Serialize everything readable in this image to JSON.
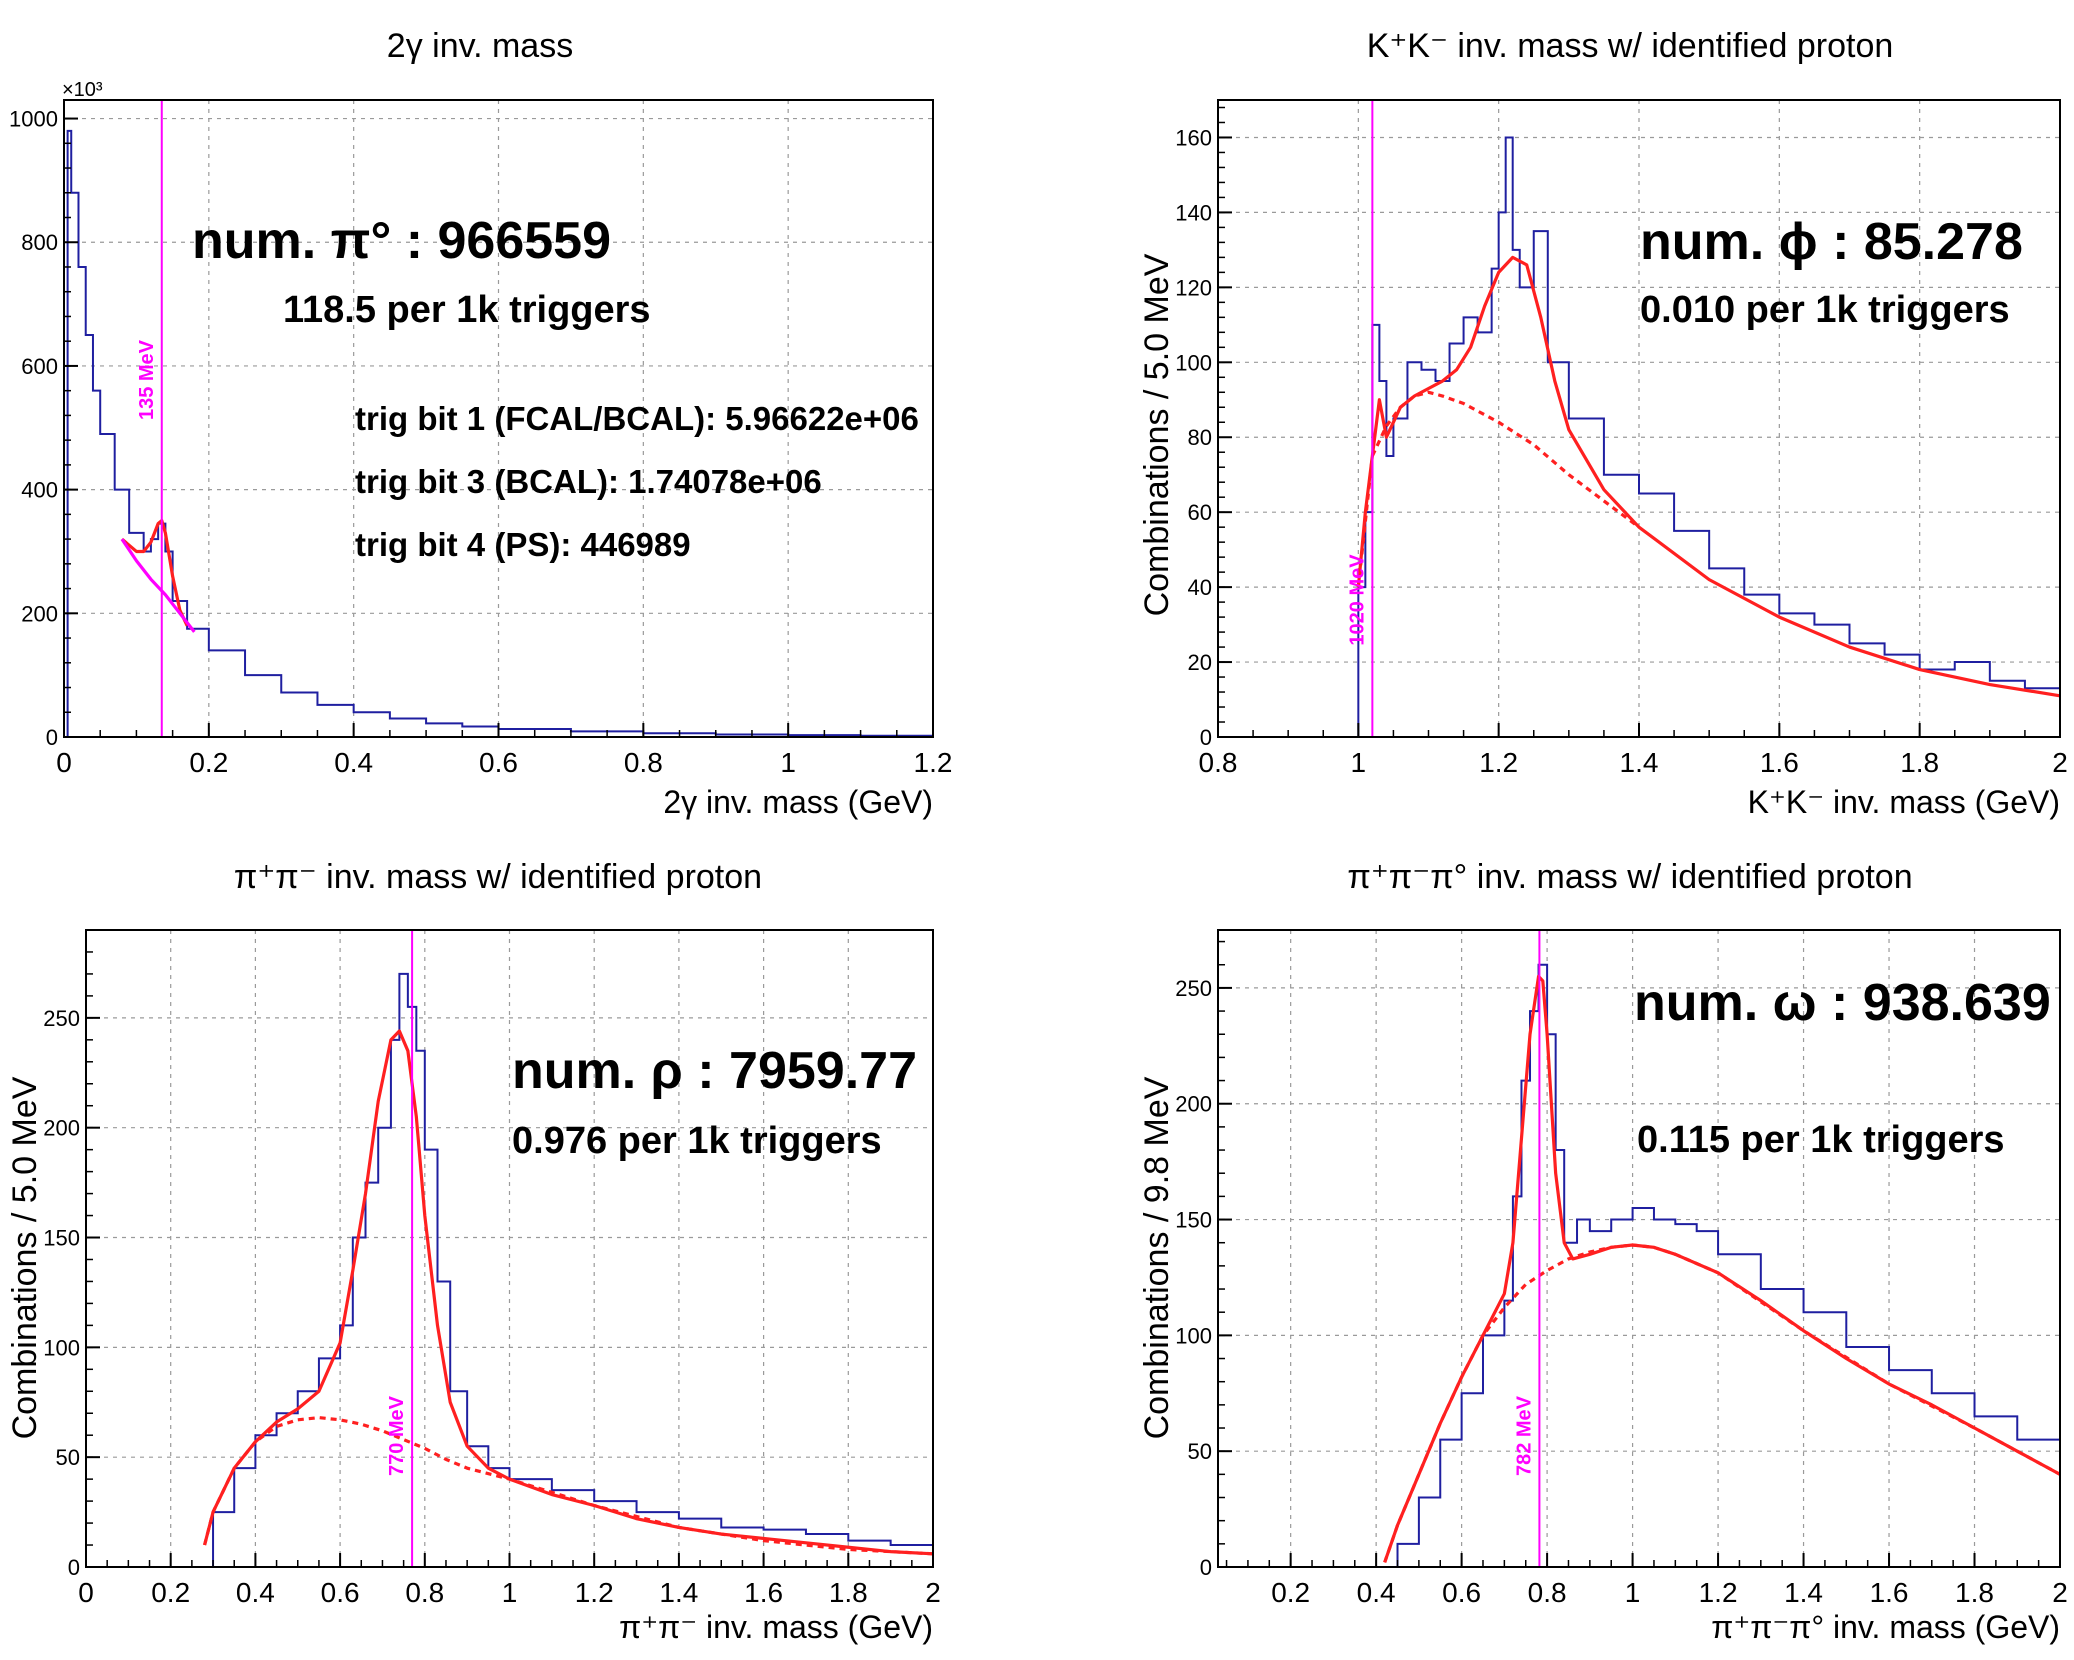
{
  "chart_data": [
    {
      "type": "line",
      "title": "2γ inv. mass",
      "xlabel": "2γ inv. mass (GeV)",
      "ylabel": "",
      "xlim": [
        0,
        1.2
      ],
      "ylim": [
        0,
        1030
      ],
      "y_multiplier_label": "×10³",
      "xticks": [
        0,
        0.2,
        0.4,
        0.6,
        0.8,
        1,
        1.2
      ],
      "xtick_labels": [
        "0",
        "0.2",
        "0.4",
        "0.6",
        "0.8",
        "1",
        "1.2"
      ],
      "yticks": [
        0,
        200,
        400,
        600,
        800,
        1000
      ],
      "ytick_labels": [
        "0",
        "200",
        "400",
        "600",
        "800",
        "1000"
      ],
      "grid": true,
      "marker": {
        "x": 0.135,
        "label": "135 MeV"
      },
      "annotations": {
        "count": "num. π° : 966559",
        "rate": "118.5 per 1k triggers",
        "trig1": "trig bit 1 (FCAL/BCAL): 5.96622e+06",
        "trig3": "trig bit 3 (BCAL): 1.74078e+06",
        "trig4": "trig bit 4 (PS): 446989"
      },
      "series": [
        {
          "role": "histogram",
          "color": "#1f1fa0",
          "x": [
            0.002,
            0.005,
            0.01,
            0.02,
            0.03,
            0.04,
            0.05,
            0.07,
            0.09,
            0.11,
            0.12,
            0.13,
            0.14,
            0.15,
            0.17,
            0.2,
            0.25,
            0.3,
            0.35,
            0.4,
            0.45,
            0.5,
            0.55,
            0.6,
            0.7,
            0.8,
            0.9,
            1.0,
            1.1,
            1.2
          ],
          "y": [
            0,
            980,
            880,
            760,
            650,
            560,
            490,
            400,
            330,
            300,
            320,
            345,
            300,
            220,
            175,
            140,
            100,
            72,
            52,
            40,
            30,
            22,
            17,
            13,
            9,
            6,
            4,
            3,
            2,
            1
          ]
        },
        {
          "role": "total fit",
          "color": "#ff2020",
          "x": [
            0.08,
            0.1,
            0.11,
            0.12,
            0.13,
            0.135,
            0.14,
            0.15,
            0.16,
            0.17
          ],
          "y": [
            320,
            300,
            300,
            315,
            345,
            350,
            330,
            260,
            205,
            180
          ]
        },
        {
          "role": "background fit",
          "color": "#ff00ff",
          "x": [
            0.08,
            0.1,
            0.12,
            0.14,
            0.16,
            0.18
          ],
          "y": [
            320,
            285,
            255,
            230,
            200,
            170
          ]
        }
      ]
    },
    {
      "type": "line",
      "title": "K⁺K⁻ inv. mass w/ identified proton",
      "xlabel": "K⁺K⁻ inv. mass (GeV)",
      "ylabel": "Combinations /   5.0 MeV",
      "xlim": [
        0.8,
        2.0
      ],
      "ylim": [
        0,
        170
      ],
      "xticks": [
        0.8,
        1,
        1.2,
        1.4,
        1.6,
        1.8,
        2
      ],
      "xtick_labels": [
        "0.8",
        "1",
        "1.2",
        "1.4",
        "1.6",
        "1.8",
        "2"
      ],
      "yticks": [
        0,
        20,
        40,
        60,
        80,
        100,
        120,
        140,
        160
      ],
      "ytick_labels": [
        "0",
        "20",
        "40",
        "60",
        "80",
        "100",
        "120",
        "140",
        "160"
      ],
      "grid": true,
      "marker": {
        "x": 1.02,
        "label": "1020 MeV"
      },
      "annotations": {
        "count": "num. ϕ : 85.278",
        "rate": "0.010 per 1k triggers"
      },
      "series": [
        {
          "role": "histogram",
          "color": "#1f1fa0",
          "x": [
            0.99,
            1.0,
            1.01,
            1.02,
            1.03,
            1.04,
            1.05,
            1.07,
            1.09,
            1.11,
            1.13,
            1.15,
            1.17,
            1.19,
            1.2,
            1.21,
            1.22,
            1.23,
            1.25,
            1.27,
            1.3,
            1.35,
            1.4,
            1.45,
            1.5,
            1.55,
            1.6,
            1.65,
            1.7,
            1.75,
            1.8,
            1.85,
            1.9,
            1.95,
            2.0
          ],
          "y": [
            0,
            40,
            60,
            110,
            95,
            75,
            85,
            100,
            98,
            95,
            105,
            112,
            108,
            125,
            140,
            160,
            130,
            120,
            135,
            100,
            85,
            70,
            65,
            55,
            45,
            38,
            33,
            30,
            25,
            22,
            18,
            20,
            15,
            13,
            15
          ]
        },
        {
          "role": "total fit",
          "color": "#ff2020",
          "x": [
            1.0,
            1.01,
            1.02,
            1.03,
            1.04,
            1.06,
            1.08,
            1.1,
            1.12,
            1.14,
            1.16,
            1.18,
            1.2,
            1.22,
            1.24,
            1.26,
            1.28,
            1.3,
            1.35,
            1.4,
            1.5,
            1.6,
            1.7,
            1.8,
            1.9,
            2.0
          ],
          "y": [
            40,
            60,
            75,
            90,
            80,
            88,
            91,
            93,
            95,
            98,
            104,
            115,
            124,
            128,
            126,
            112,
            95,
            82,
            66,
            56,
            42,
            32,
            24,
            18,
            14,
            11
          ]
        },
        {
          "role": "background fit",
          "color": "#ff2020",
          "x": [
            1.0,
            1.02,
            1.04,
            1.06,
            1.08,
            1.1,
            1.12,
            1.15,
            1.2,
            1.25,
            1.3,
            1.35,
            1.4
          ],
          "y": [
            40,
            75,
            83,
            88,
            91,
            92,
            91,
            89,
            84,
            78,
            70,
            63,
            56
          ]
        }
      ]
    },
    {
      "type": "line",
      "title": "π⁺π⁻ inv. mass w/ identified proton",
      "xlabel": "π⁺π⁻ inv. mass (GeV)",
      "ylabel": "Combinations /   5.0 MeV",
      "xlim": [
        0,
        2.0
      ],
      "ylim": [
        0,
        290
      ],
      "xticks": [
        0,
        0.2,
        0.4,
        0.6,
        0.8,
        1,
        1.2,
        1.4,
        1.6,
        1.8,
        2
      ],
      "xtick_labels": [
        "0",
        "0.2",
        "0.4",
        "0.6",
        "0.8",
        "1",
        "1.2",
        "1.4",
        "1.6",
        "1.8",
        "2"
      ],
      "yticks": [
        0,
        50,
        100,
        150,
        200,
        250
      ],
      "ytick_labels": [
        "0",
        "50",
        "100",
        "150",
        "200",
        "250"
      ],
      "grid": true,
      "marker": {
        "x": 0.77,
        "label": "770 MeV"
      },
      "annotations": {
        "count": "num. ρ : 7959.77",
        "rate": "0.976 per 1k triggers"
      },
      "series": [
        {
          "role": "histogram",
          "color": "#1f1fa0",
          "x": [
            0.28,
            0.3,
            0.35,
            0.4,
            0.45,
            0.5,
            0.55,
            0.6,
            0.63,
            0.66,
            0.69,
            0.72,
            0.74,
            0.76,
            0.78,
            0.8,
            0.83,
            0.86,
            0.9,
            0.95,
            1.0,
            1.1,
            1.2,
            1.3,
            1.4,
            1.5,
            1.6,
            1.7,
            1.8,
            1.9,
            2.0
          ],
          "y": [
            0,
            25,
            45,
            60,
            70,
            80,
            95,
            110,
            150,
            175,
            200,
            240,
            270,
            255,
            235,
            190,
            130,
            80,
            55,
            45,
            40,
            35,
            30,
            25,
            22,
            18,
            17,
            15,
            12,
            10,
            8
          ]
        },
        {
          "role": "total fit",
          "color": "#ff2020",
          "x": [
            0.28,
            0.3,
            0.35,
            0.4,
            0.45,
            0.5,
            0.55,
            0.6,
            0.63,
            0.66,
            0.69,
            0.72,
            0.74,
            0.76,
            0.78,
            0.8,
            0.83,
            0.86,
            0.9,
            0.95,
            1.0,
            1.1,
            1.2,
            1.3,
            1.4,
            1.5,
            1.6,
            1.7,
            1.8,
            1.9,
            2.0
          ],
          "y": [
            10,
            25,
            45,
            57,
            66,
            72,
            80,
            102,
            135,
            170,
            212,
            240,
            244,
            235,
            205,
            160,
            110,
            75,
            55,
            45,
            40,
            33,
            28,
            22,
            18,
            15,
            13,
            11,
            9,
            7,
            6
          ]
        },
        {
          "role": "background fit",
          "color": "#ff2020",
          "x": [
            0.28,
            0.3,
            0.35,
            0.4,
            0.45,
            0.5,
            0.55,
            0.6,
            0.65,
            0.7,
            0.75,
            0.8,
            0.85,
            0.9,
            1.0,
            1.2,
            1.4,
            1.6,
            1.8,
            2.0
          ],
          "y": [
            10,
            25,
            45,
            57,
            64,
            67,
            68,
            67,
            65,
            62,
            58,
            54,
            49,
            45,
            40,
            28,
            18,
            12,
            8,
            6
          ]
        }
      ]
    },
    {
      "type": "line",
      "title": "π⁺π⁻π° inv. mass w/ identified proton",
      "xlabel": "π⁺π⁻π° inv. mass (GeV)",
      "ylabel": "Combinations /   9.8 MeV",
      "xlim": [
        0.03,
        2.0
      ],
      "ylim": [
        0,
        275
      ],
      "xticks": [
        0.2,
        0.4,
        0.6,
        0.8,
        1,
        1.2,
        1.4,
        1.6,
        1.8,
        2
      ],
      "xtick_labels": [
        "0.2",
        "0.4",
        "0.6",
        "0.8",
        "1",
        "1.2",
        "1.4",
        "1.6",
        "1.8",
        "2"
      ],
      "yticks": [
        0,
        50,
        100,
        150,
        200,
        250
      ],
      "ytick_labels": [
        "0",
        "50",
        "100",
        "150",
        "200",
        "250"
      ],
      "grid": true,
      "marker": {
        "x": 0.782,
        "label": "782 MeV"
      },
      "annotations": {
        "count": "num. ω : 938.639",
        "rate": "0.115 per 1k triggers"
      },
      "series": [
        {
          "role": "histogram",
          "color": "#1f1fa0",
          "x": [
            0.42,
            0.45,
            0.5,
            0.55,
            0.6,
            0.65,
            0.7,
            0.72,
            0.74,
            0.76,
            0.78,
            0.8,
            0.82,
            0.84,
            0.87,
            0.9,
            0.95,
            1.0,
            1.05,
            1.1,
            1.15,
            1.2,
            1.3,
            1.4,
            1.5,
            1.6,
            1.7,
            1.8,
            1.9,
            2.0
          ],
          "y": [
            0,
            10,
            30,
            55,
            75,
            100,
            115,
            160,
            210,
            240,
            260,
            230,
            180,
            140,
            150,
            145,
            150,
            155,
            150,
            148,
            145,
            135,
            120,
            110,
            95,
            85,
            75,
            65,
            55,
            45
          ]
        },
        {
          "role": "total fit",
          "color": "#ff2020",
          "x": [
            0.42,
            0.45,
            0.5,
            0.55,
            0.6,
            0.65,
            0.7,
            0.72,
            0.74,
            0.76,
            0.78,
            0.79,
            0.8,
            0.82,
            0.84,
            0.86,
            0.9,
            0.95,
            1.0,
            1.05,
            1.1,
            1.2,
            1.3,
            1.4,
            1.5,
            1.6,
            1.7,
            1.8,
            1.9,
            2.0
          ],
          "y": [
            2,
            18,
            40,
            62,
            82,
            100,
            118,
            140,
            185,
            230,
            255,
            253,
            230,
            170,
            140,
            133,
            135,
            138,
            139,
            138,
            135,
            127,
            115,
            102,
            90,
            79,
            70,
            60,
            50,
            40
          ]
        },
        {
          "role": "background fit",
          "color": "#ff2020",
          "x": [
            0.42,
            0.45,
            0.5,
            0.55,
            0.6,
            0.65,
            0.7,
            0.75,
            0.8,
            0.85,
            0.9,
            0.95,
            1.0,
            1.05,
            1.1,
            1.2,
            1.4,
            1.6,
            1.8,
            2.0
          ],
          "y": [
            2,
            18,
            40,
            62,
            82,
            100,
            112,
            122,
            128,
            133,
            136,
            138,
            139,
            138,
            135,
            127,
            102,
            79,
            60,
            40
          ]
        }
      ]
    }
  ]
}
